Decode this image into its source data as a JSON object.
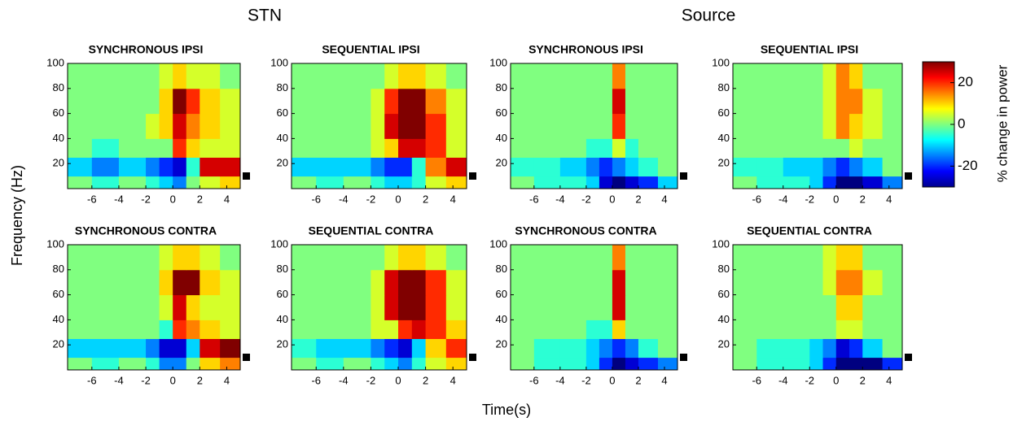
{
  "figure": {
    "group_labels": [
      "STN",
      "Source"
    ],
    "ylabel": "Frequency (Hz)",
    "xlabel": "Time(s)",
    "colorbar": {
      "label": "% change in power",
      "clim": [
        -30,
        30
      ],
      "ticks": [
        20,
        0,
        -20
      ]
    }
  },
  "chart_data": [
    {
      "type": "heatmap",
      "title": "SYNCHRONOUS IPSI",
      "xlim": [
        -7.8,
        5
      ],
      "ylim": [
        0,
        100
      ],
      "xticks": [
        -6,
        -4,
        -2,
        0,
        2,
        4
      ],
      "yticks": [
        20,
        40,
        60,
        80,
        100
      ],
      "x_edges": [
        -7.8,
        -6,
        -4,
        -2,
        -1,
        0,
        1,
        2,
        3.5,
        5
      ],
      "y_edges": [
        0,
        10,
        25,
        40,
        60,
        80,
        100
      ],
      "values": [
        [
          0,
          -5,
          0,
          -5,
          -10,
          -15,
          0,
          5,
          10
        ],
        [
          -10,
          -15,
          -10,
          -15,
          -20,
          -25,
          -5,
          25,
          25
        ],
        [
          0,
          -5,
          0,
          0,
          0,
          20,
          10,
          5,
          5
        ],
        [
          0,
          0,
          0,
          5,
          10,
          25,
          15,
          10,
          5
        ],
        [
          0,
          0,
          0,
          0,
          10,
          30,
          20,
          10,
          5
        ],
        [
          0,
          0,
          0,
          0,
          5,
          10,
          5,
          5,
          0
        ]
      ]
    },
    {
      "type": "heatmap",
      "title": "SEQUENTIAL IPSI",
      "xlim": [
        -7.8,
        5
      ],
      "ylim": [
        0,
        100
      ],
      "xticks": [
        -6,
        -4,
        -2,
        0,
        2,
        4
      ],
      "yticks": [
        20,
        40,
        60,
        80,
        100
      ],
      "x_edges": [
        -7.8,
        -6,
        -4,
        -2,
        -1,
        0,
        1,
        2,
        3.5,
        5
      ],
      "y_edges": [
        0,
        10,
        25,
        40,
        60,
        80,
        100
      ],
      "values": [
        [
          0,
          -5,
          0,
          -5,
          -10,
          -10,
          -5,
          5,
          10
        ],
        [
          -10,
          -10,
          -10,
          -15,
          -20,
          -20,
          -5,
          15,
          25
        ],
        [
          0,
          0,
          0,
          5,
          10,
          25,
          25,
          20,
          5
        ],
        [
          0,
          0,
          0,
          5,
          25,
          30,
          30,
          20,
          5
        ],
        [
          0,
          0,
          0,
          5,
          20,
          30,
          30,
          15,
          5
        ],
        [
          0,
          0,
          0,
          0,
          5,
          10,
          10,
          5,
          0
        ]
      ]
    },
    {
      "type": "heatmap",
      "title": "SYNCHRONOUS IPSI",
      "xlim": [
        -7.8,
        5
      ],
      "ylim": [
        0,
        100
      ],
      "xticks": [
        -6,
        -4,
        -2,
        0,
        2,
        4
      ],
      "yticks": [
        20,
        40,
        60,
        80,
        100
      ],
      "x_edges": [
        -7.8,
        -6,
        -4,
        -2,
        -1,
        0,
        1,
        2,
        3.5,
        5
      ],
      "y_edges": [
        0,
        10,
        25,
        40,
        60,
        80,
        100
      ],
      "values": [
        [
          0,
          -5,
          -5,
          -10,
          -25,
          -30,
          -25,
          -20,
          -10
        ],
        [
          -5,
          -5,
          -10,
          -15,
          -20,
          -15,
          -10,
          -5,
          0
        ],
        [
          0,
          0,
          0,
          -5,
          -5,
          5,
          -5,
          0,
          0
        ],
        [
          0,
          0,
          0,
          0,
          0,
          20,
          0,
          0,
          0
        ],
        [
          0,
          0,
          0,
          0,
          0,
          25,
          0,
          0,
          0
        ],
        [
          0,
          0,
          0,
          0,
          0,
          15,
          0,
          0,
          0
        ]
      ]
    },
    {
      "type": "heatmap",
      "title": "SEQUENTIAL IPSI",
      "xlim": [
        -7.8,
        5
      ],
      "ylim": [
        0,
        100
      ],
      "xticks": [
        -6,
        -4,
        -2,
        0,
        2,
        4
      ],
      "yticks": [
        20,
        40,
        60,
        80,
        100
      ],
      "x_edges": [
        -7.8,
        -6,
        -4,
        -2,
        -1,
        0,
        1,
        2,
        3.5,
        5
      ],
      "y_edges": [
        0,
        10,
        25,
        40,
        60,
        80,
        100
      ],
      "values": [
        [
          0,
          -5,
          -5,
          -10,
          -20,
          -30,
          -30,
          -25,
          -15
        ],
        [
          -5,
          -5,
          -10,
          -10,
          -15,
          -20,
          -15,
          -10,
          0
        ],
        [
          0,
          0,
          0,
          0,
          0,
          0,
          5,
          0,
          0
        ],
        [
          0,
          0,
          0,
          0,
          5,
          15,
          10,
          5,
          0
        ],
        [
          0,
          0,
          0,
          0,
          5,
          15,
          15,
          5,
          0
        ],
        [
          0,
          0,
          0,
          0,
          5,
          15,
          10,
          0,
          0
        ]
      ]
    },
    {
      "type": "heatmap",
      "title": "SYNCHRONOUS CONTRA",
      "xlim": [
        -7.8,
        5
      ],
      "ylim": [
        0,
        100
      ],
      "xticks": [
        -6,
        -4,
        -2,
        0,
        2,
        4
      ],
      "yticks": [
        20,
        40,
        60,
        80,
        100
      ],
      "x_edges": [
        -7.8,
        -6,
        -4,
        -2,
        -1,
        0,
        1,
        2,
        3.5,
        5
      ],
      "y_edges": [
        0,
        10,
        25,
        40,
        60,
        80,
        100
      ],
      "values": [
        [
          0,
          -5,
          0,
          -5,
          -15,
          -15,
          0,
          10,
          15
        ],
        [
          -10,
          -10,
          -10,
          -15,
          -25,
          -25,
          -10,
          25,
          30
        ],
        [
          0,
          0,
          0,
          0,
          -5,
          20,
          15,
          10,
          5
        ],
        [
          0,
          0,
          0,
          0,
          5,
          25,
          10,
          5,
          5
        ],
        [
          0,
          0,
          0,
          0,
          10,
          30,
          30,
          10,
          5
        ],
        [
          0,
          0,
          0,
          0,
          5,
          10,
          10,
          5,
          0
        ]
      ]
    },
    {
      "type": "heatmap",
      "title": "SEQUENTIAL CONTRA",
      "xlim": [
        -7.8,
        5
      ],
      "ylim": [
        0,
        100
      ],
      "xticks": [
        -6,
        -4,
        -2,
        0,
        2,
        4
      ],
      "yticks": [
        20,
        40,
        60,
        80,
        100
      ],
      "x_edges": [
        -7.8,
        -6,
        -4,
        -2,
        -1,
        0,
        1,
        2,
        3.5,
        5
      ],
      "y_edges": [
        0,
        10,
        25,
        40,
        60,
        80,
        100
      ],
      "values": [
        [
          0,
          -5,
          0,
          -5,
          -10,
          -15,
          -5,
          5,
          10
        ],
        [
          -5,
          -10,
          -10,
          -15,
          -20,
          -25,
          -10,
          10,
          20
        ],
        [
          0,
          0,
          0,
          5,
          5,
          20,
          25,
          20,
          10
        ],
        [
          0,
          0,
          0,
          5,
          25,
          30,
          30,
          20,
          5
        ],
        [
          0,
          0,
          0,
          5,
          25,
          30,
          30,
          20,
          5
        ],
        [
          0,
          0,
          0,
          0,
          5,
          10,
          10,
          5,
          0
        ]
      ]
    },
    {
      "type": "heatmap",
      "title": "SYNCHRONOUS CONTRA",
      "xlim": [
        -7.8,
        5
      ],
      "ylim": [
        0,
        100
      ],
      "xticks": [
        -6,
        -4,
        -2,
        0,
        2,
        4
      ],
      "yticks": [
        20,
        40,
        60,
        80,
        100
      ],
      "x_edges": [
        -7.8,
        -6,
        -4,
        -2,
        -1,
        0,
        1,
        2,
        3.5,
        5
      ],
      "y_edges": [
        0,
        10,
        25,
        40,
        60,
        80,
        100
      ],
      "values": [
        [
          0,
          -5,
          -5,
          -10,
          -20,
          -30,
          -25,
          -20,
          -15
        ],
        [
          0,
          -5,
          -5,
          -10,
          -15,
          -20,
          -15,
          -5,
          0
        ],
        [
          0,
          0,
          0,
          -5,
          -5,
          10,
          0,
          0,
          0
        ],
        [
          0,
          0,
          0,
          0,
          0,
          25,
          0,
          0,
          0
        ],
        [
          0,
          0,
          0,
          0,
          0,
          25,
          0,
          0,
          0
        ],
        [
          0,
          0,
          0,
          0,
          0,
          15,
          0,
          0,
          0
        ]
      ]
    },
    {
      "type": "heatmap",
      "title": "SEQUENTIAL CONTRA",
      "xlim": [
        -7.8,
        5
      ],
      "ylim": [
        0,
        100
      ],
      "xticks": [
        -6,
        -4,
        -2,
        0,
        2,
        4
      ],
      "yticks": [
        20,
        40,
        60,
        80,
        100
      ],
      "x_edges": [
        -7.8,
        -6,
        -4,
        -2,
        -1,
        0,
        1,
        2,
        3.5,
        5
      ],
      "y_edges": [
        0,
        10,
        25,
        40,
        60,
        80,
        100
      ],
      "values": [
        [
          0,
          -5,
          -5,
          -10,
          -20,
          -30,
          -30,
          -30,
          -20
        ],
        [
          0,
          -5,
          -5,
          -10,
          -15,
          -25,
          -20,
          -10,
          0
        ],
        [
          0,
          0,
          0,
          0,
          0,
          5,
          5,
          0,
          0
        ],
        [
          0,
          0,
          0,
          0,
          0,
          10,
          10,
          0,
          0
        ],
        [
          0,
          0,
          0,
          0,
          5,
          15,
          15,
          5,
          0
        ],
        [
          0,
          0,
          0,
          0,
          5,
          10,
          10,
          0,
          0
        ]
      ]
    }
  ]
}
